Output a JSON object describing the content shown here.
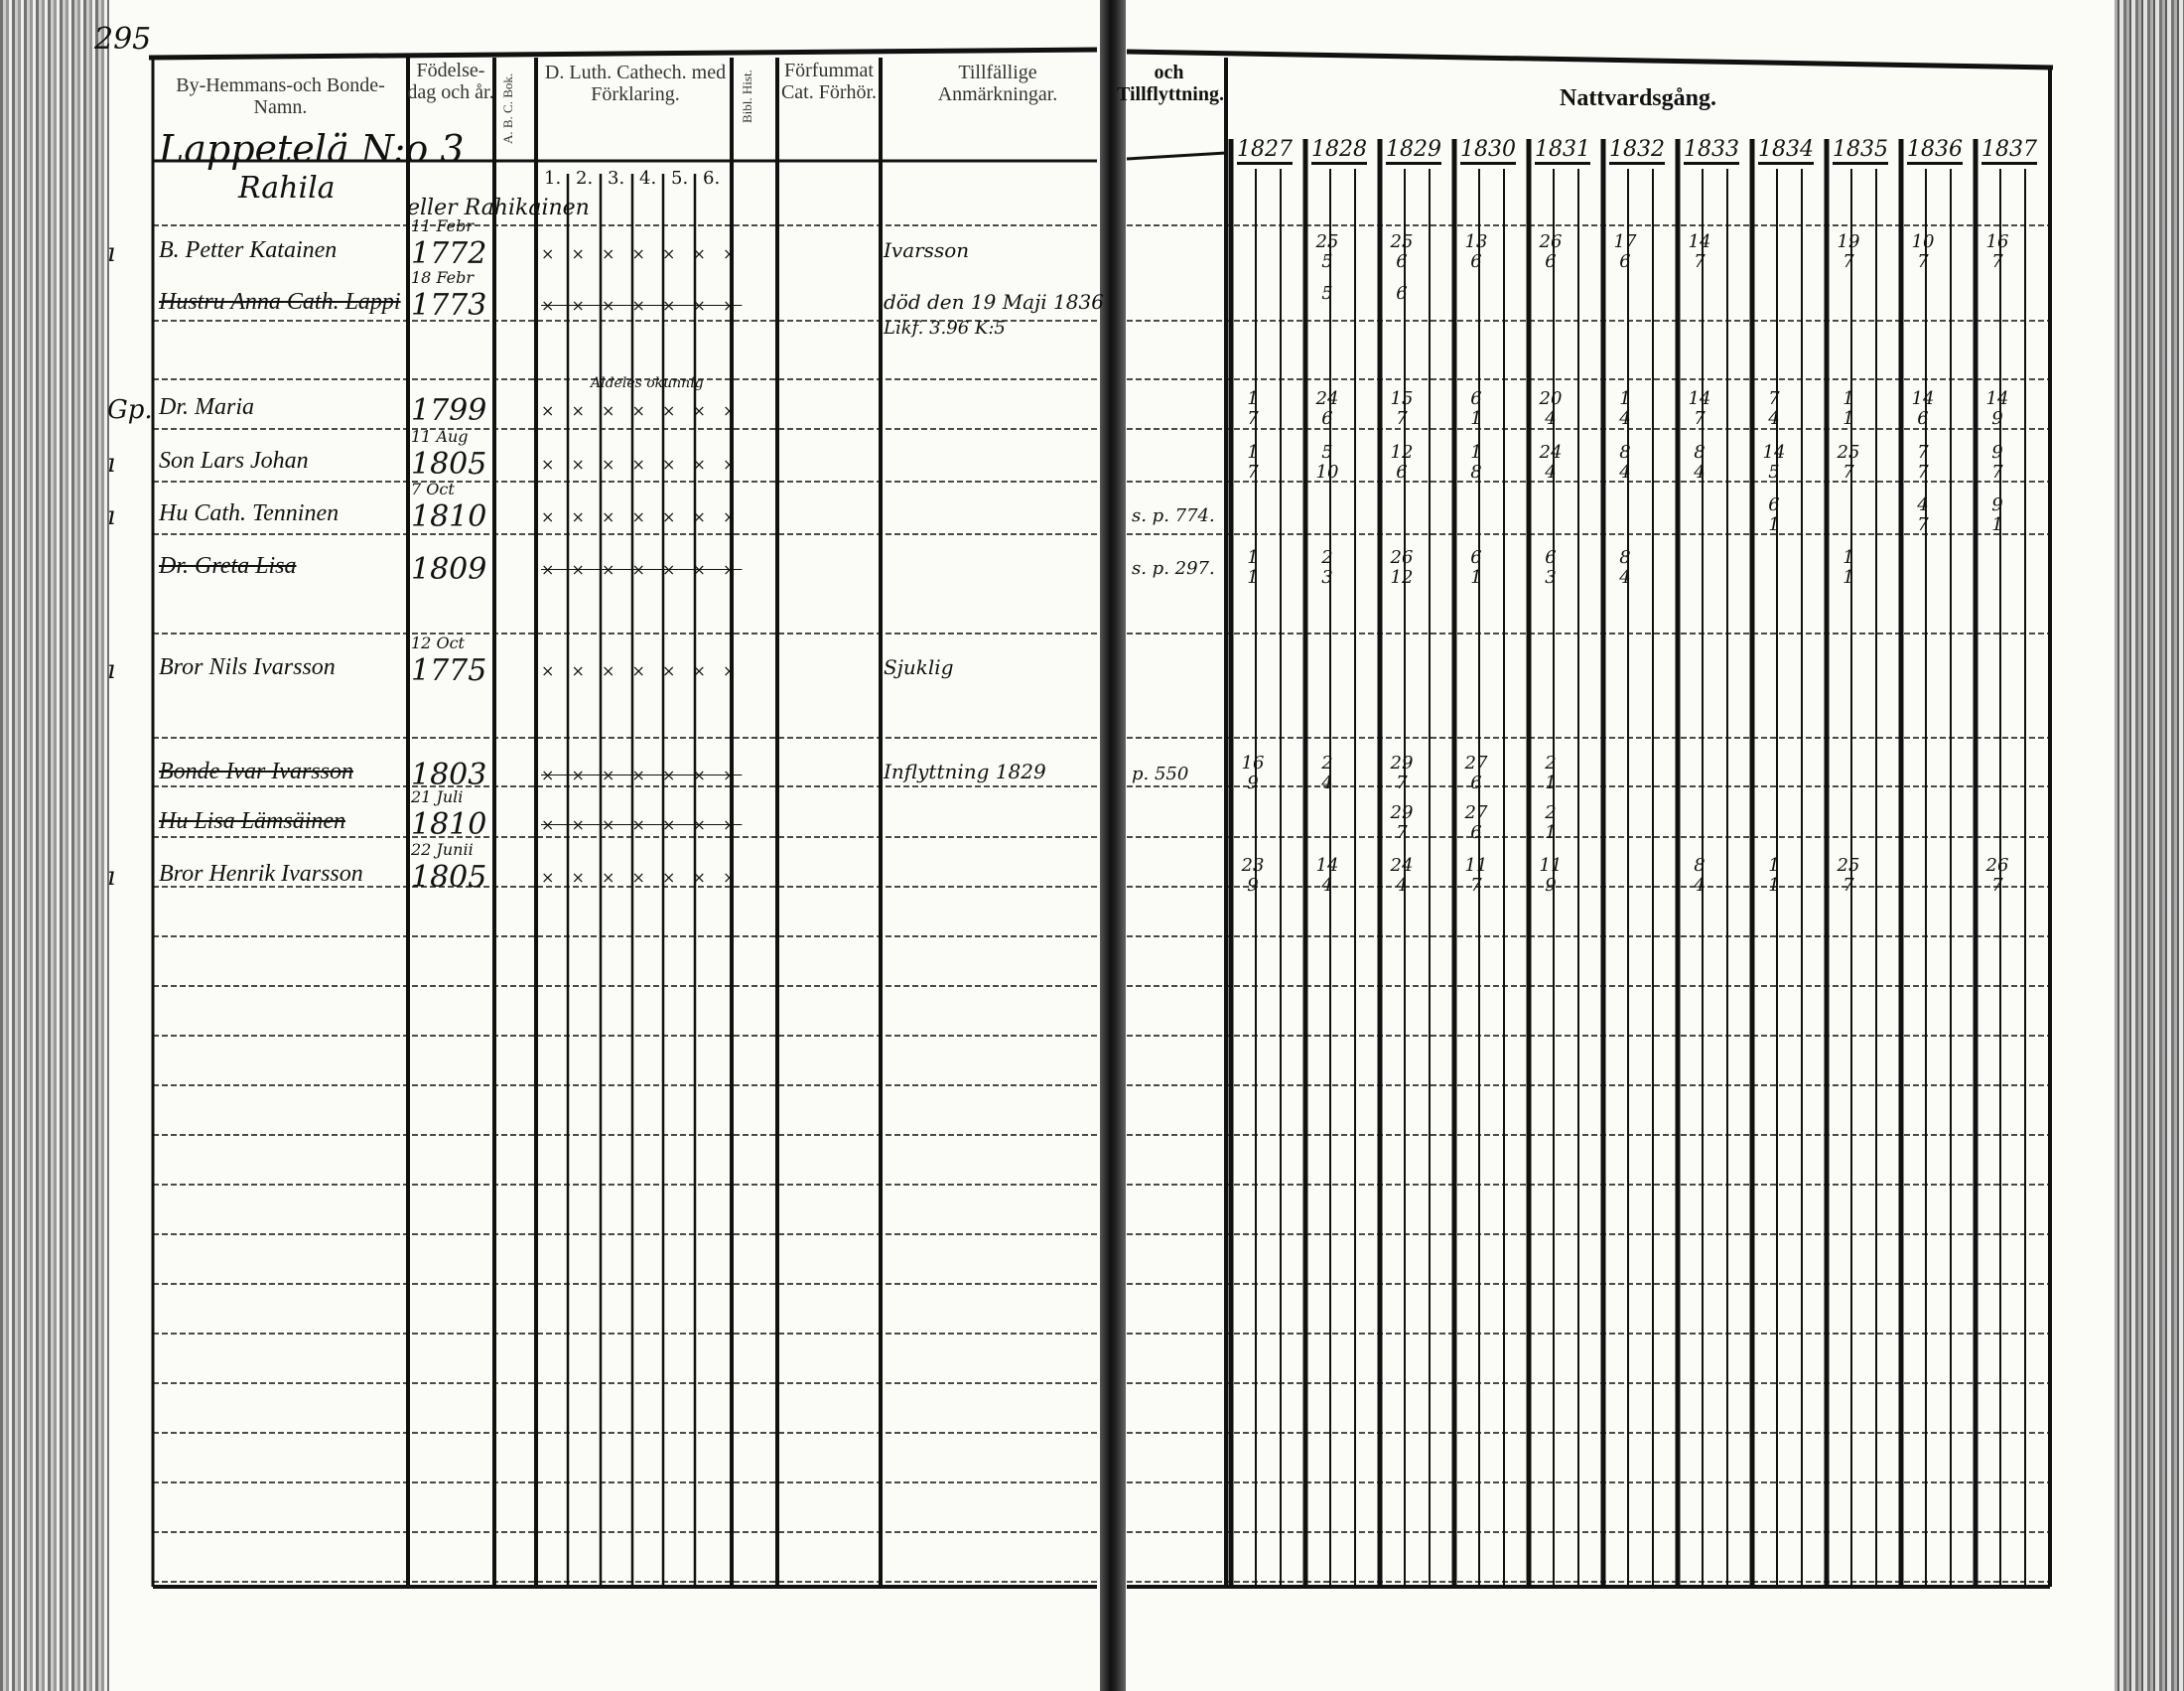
{
  "page_number": "295",
  "headers": {
    "name": "By-Hemmans-och Bonde-Namn.",
    "birth": "Födelse-dag och år.",
    "narrow1": "A. B. C. Bok.",
    "catechism": "D. Luth. Cathech. med Förklaring.",
    "catechism_subcols": [
      "1.",
      "2.",
      "3.",
      "4.",
      "5.",
      "6."
    ],
    "narrow2": "Bibl. Hist.",
    "forfummat": "Förfummat Cat. Förhör.",
    "remarks": "Tillfällige Anmärkningar.",
    "moving": "och Tillflyttning.",
    "communion": "Nattvardsgång."
  },
  "village": "Lappetelä N:o 3",
  "farm": "Rahila",
  "farm_note": "eller Rahikainen",
  "catechism_note": "Aldeles okunnig",
  "communion_years": [
    "1827",
    "1828",
    "1829",
    "1830",
    "1831",
    "1832",
    "1833",
    "1834",
    "1835",
    "1836",
    "1837"
  ],
  "persons": [
    {
      "mark": "ı",
      "name": "B. Petter Katainen",
      "birth_day": "11 Febr",
      "birth_year": "1772",
      "struck": false,
      "remark": "Ivarsson",
      "remark2": "",
      "moving": "",
      "communion": {
        "1828": "25\n5",
        "1829": "25\n6",
        "1830": "13\n6",
        "1831": "26\n6",
        "1832": "17\n6",
        "1833": "14\n7",
        "1835": "19\n7",
        "1836": "10\n7",
        "1837": "16\n7"
      }
    },
    {
      "mark": "",
      "name": "Hustru Anna Cath. Lappi",
      "birth_day": "18 Febr",
      "birth_year": "1773",
      "struck": true,
      "remark": "död den 19 Maji 1836",
      "remark2": "Likf. 3.96 K:5",
      "moving": "",
      "communion": {
        "1828": "5",
        "1829": "6"
      }
    },
    {
      "mark": "Gp.",
      "name": "Dr. Maria",
      "birth_day": "",
      "birth_year": "1799",
      "struck": false,
      "remark": "",
      "remark2": "",
      "moving": "",
      "communion": {
        "1827": "1\n7",
        "1828": "24\n6",
        "1829": "15\n7",
        "1830": "6\n1",
        "1831": "20\n4",
        "1832": "1\n4",
        "1833": "14\n7",
        "1834": "7\n4",
        "1835": "1\n1",
        "1836": "14\n6",
        "1837": "14\n9"
      }
    },
    {
      "mark": "ı",
      "name": "Son Lars Johan",
      "birth_day": "11 Aug",
      "birth_year": "1805",
      "struck": false,
      "remark": "",
      "remark2": "",
      "moving": "",
      "communion": {
        "1827": "1\n7",
        "1828": "5\n10",
        "1829": "12\n6",
        "1830": "1\n8",
        "1831": "24\n4",
        "1832": "8\n4",
        "1833": "8\n4",
        "1834": "14\n5",
        "1835": "25\n7",
        "1836": "7\n7",
        "1837": "9\n7"
      }
    },
    {
      "mark": "ı",
      "name": "Hu Cath. Tenninen",
      "birth_day": "7 Oct",
      "birth_year": "1810",
      "struck": false,
      "remark": "",
      "remark2": "",
      "moving": "s. p. 774.",
      "communion": {
        "1834": "6\n1",
        "1836": "4\n7",
        "1837": "9\n1"
      }
    },
    {
      "mark": "",
      "name": "Dr. Greta Lisa",
      "birth_day": "",
      "birth_year": "1809",
      "struck": true,
      "remark": "",
      "remark2": "",
      "moving": "s. p. 297.",
      "communion": {
        "1827": "1\n1",
        "1828": "2\n3",
        "1829": "26\n12",
        "1830": "6\n1",
        "1831": "6\n3",
        "1832": "8\n4",
        "1835": "1\n1"
      }
    },
    {
      "mark": "ı",
      "name": "Bror Nils Ivarsson",
      "birth_day": "12 Oct",
      "birth_year": "1775",
      "struck": false,
      "remark": "Sjuklig",
      "remark2": "",
      "moving": "",
      "communion": {}
    },
    {
      "mark": "",
      "name": "Bonde Ivar Ivarsson",
      "birth_day": "",
      "birth_year": "1803",
      "struck": true,
      "remark": "Inflyttning 1829",
      "remark2": "",
      "moving": "p. 550",
      "communion": {
        "1827": "16\n9",
        "1828": "2\n4",
        "1829": "29\n7",
        "1830": "27\n6",
        "1831": "2\n1"
      }
    },
    {
      "mark": "",
      "name": "Hu Lisa Lämsäinen",
      "birth_day": "21 Juli",
      "birth_year": "1810",
      "struck": true,
      "remark": "",
      "remark2": "",
      "moving": "",
      "communion": {
        "1829": "29\n7",
        "1830": "27\n6",
        "1831": "2\n1"
      }
    },
    {
      "mark": "ı",
      "name": "Bror Henrik Ivarsson",
      "birth_day": "22 Junii",
      "birth_year": "1805",
      "struck": false,
      "remark": "",
      "remark2": "",
      "moving": "",
      "communion": {
        "1827": "23\n9",
        "1828": "14\n4",
        "1829": "24\n4",
        "1830": "11\n7",
        "1831": "11\n9",
        "1833": "8\n4",
        "1834": "1\n1",
        "1835": "25\n7",
        "1837": "26\n7"
      }
    }
  ]
}
